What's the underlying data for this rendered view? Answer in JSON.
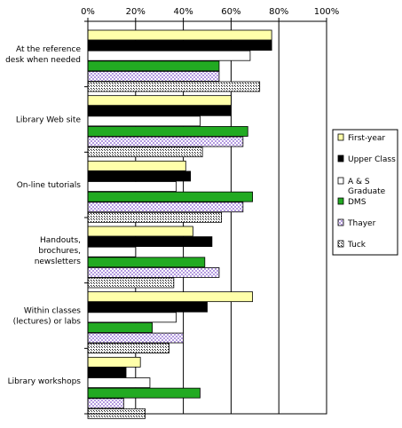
{
  "chart_data": {
    "type": "bar",
    "orientation": "horizontal",
    "categories": [
      "At the reference desk when needed",
      "Library Web site",
      "On-line tutorials",
      "Handouts, brochures, newsletters",
      "Within classes (lectures) or labs",
      "Library workshops"
    ],
    "category_lines": [
      [
        "At the reference",
        "desk when needed"
      ],
      [
        "Library Web site"
      ],
      [
        "On-line tutorials"
      ],
      [
        "Handouts,",
        "brochures,",
        "newsletters"
      ],
      [
        "Within classes",
        "(lectures) or labs"
      ],
      [
        "Library workshops"
      ]
    ],
    "series": [
      {
        "name": "First-year",
        "fill": "#ffffaa",
        "pattern": "solid",
        "values": [
          77,
          60,
          41,
          44,
          69,
          22
        ]
      },
      {
        "name": "Upper Class",
        "fill": "#000000",
        "pattern": "solid",
        "values": [
          77,
          60,
          43,
          52,
          50,
          16
        ]
      },
      {
        "name": "A & S Graduate",
        "fill": "#ffffff",
        "pattern": "solid",
        "values": [
          68,
          47,
          37,
          20,
          37,
          26
        ]
      },
      {
        "name": "DMS",
        "fill": "#22aa22",
        "pattern": "solid",
        "values": [
          55,
          67,
          69,
          49,
          27,
          47
        ]
      },
      {
        "name": "Thayer",
        "fill": "#ccaaee",
        "pattern": "checker",
        "values": [
          55,
          65,
          65,
          55,
          40,
          15
        ]
      },
      {
        "name": "Tuck",
        "fill": "#999999",
        "pattern": "dots",
        "values": [
          72,
          48,
          56,
          36,
          34,
          24
        ]
      }
    ],
    "legend_labels": [
      [
        "First-year"
      ],
      [
        "Upper Class"
      ],
      [
        "A & S",
        "Graduate"
      ],
      [
        "DMS"
      ],
      [
        "Thayer"
      ],
      [
        "Tuck"
      ]
    ],
    "xticks": [
      "0%",
      "20%",
      "40%",
      "60%",
      "80%",
      "100%"
    ],
    "xlim": [
      0,
      100
    ],
    "grid": true,
    "legend_position": "right",
    "title": "",
    "xlabel": "",
    "ylabel": ""
  }
}
